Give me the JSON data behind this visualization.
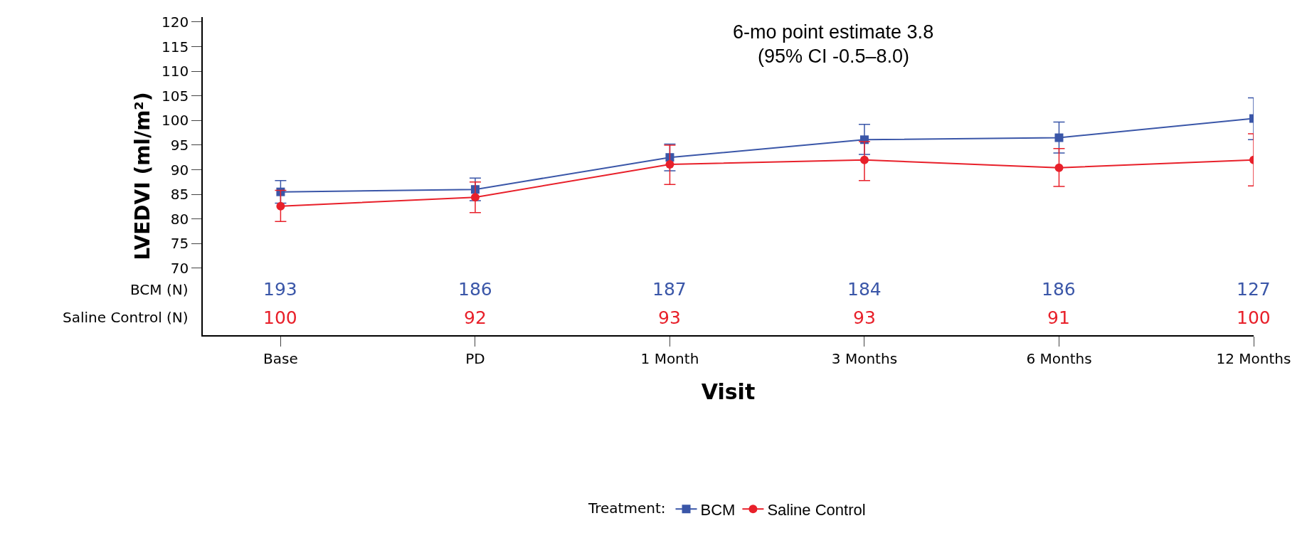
{
  "chart_data": {
    "type": "line",
    "xlabel": "Visit",
    "ylabel": "LVEDVI (ml/m²)",
    "legend_title": "Treatment:",
    "categories": [
      "Base",
      "PD",
      "1 Month",
      "3 Months",
      "6 Months",
      "12 Months"
    ],
    "ylim": [
      56.4,
      121
    ],
    "yticks": [
      70,
      75,
      80,
      85,
      90,
      95,
      100,
      105,
      110,
      115,
      120
    ],
    "series": [
      {
        "name": "BCM",
        "color": "#3a56a8",
        "marker": "square",
        "values": [
          85.5,
          86,
          92.5,
          96.1,
          96.5,
          100.4
        ],
        "errors": [
          [
            83.2,
            87.8
          ],
          [
            83.7,
            88.3
          ],
          [
            89.8,
            95.2
          ],
          [
            93.1,
            99.2
          ],
          [
            93.4,
            99.7
          ],
          [
            96.1,
            104.6
          ]
        ]
      },
      {
        "name": "Saline Control",
        "color": "#e8202a",
        "marker": "circle",
        "values": [
          82.6,
          84.4,
          91.1,
          92,
          90.4,
          92
        ],
        "errors": [
          [
            79.5,
            85.8
          ],
          [
            81.3,
            87.5
          ],
          [
            87,
            95
          ],
          [
            87.8,
            95.7
          ],
          [
            86.6,
            94.3
          ],
          [
            86.7,
            97.3
          ]
        ]
      }
    ],
    "annotations": [
      "6-mo point estimate 3.8",
      "(95% CI -0.5–8.0)",
      "BCM (N)",
      "193",
      "186",
      "187",
      "184",
      "186",
      "127",
      "Saline Control (N)",
      "100",
      "92",
      "93",
      "93",
      "91",
      "100"
    ],
    "grid": false,
    "legend": "bottom",
    "line_style": "solid"
  }
}
